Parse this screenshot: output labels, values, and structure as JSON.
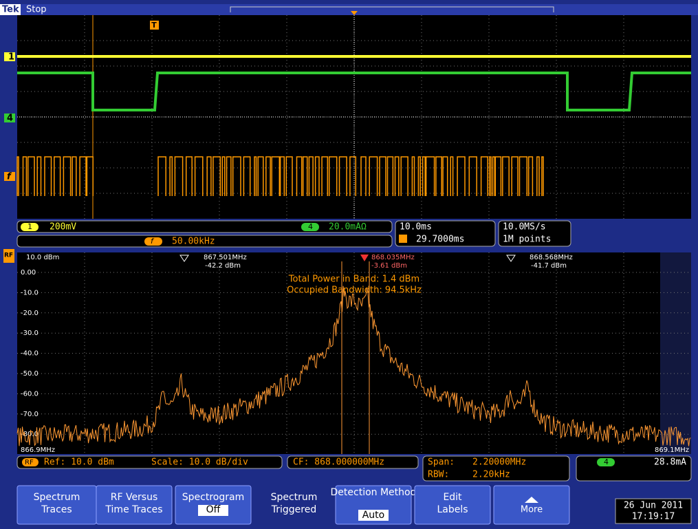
{
  "header": {
    "brand": "Tek",
    "state": "Stop"
  },
  "channel_markers": {
    "ch1": "1",
    "ch4": "4",
    "math": "f",
    "trigger": "T"
  },
  "readouts": {
    "ch1_badge": "1",
    "ch1_scale": "200mV",
    "ch4_badge": "4",
    "ch4_scale": "20.0mAΩ",
    "math_badge": "f",
    "math_scale": "50.00kHz",
    "timebase": "10.0ms",
    "trigger_position": "29.7000ms",
    "sample_rate": "10.0MS/s",
    "record_length": "1M points"
  },
  "spectrum": {
    "badge": "RF",
    "ref_level": "10.0 dBm",
    "y_labels": [
      "0.00",
      "-10.0",
      "-20.0",
      "-30.0",
      "-40.0",
      "-50.0",
      "-60.0",
      "-70.0",
      "-80.0"
    ],
    "start_freq": "866.9MHz",
    "stop_freq": "869.1MHz",
    "markers": [
      {
        "freq": "867.501MHz",
        "level": "-42.2 dBm"
      },
      {
        "freq": "868.035MHz",
        "level": "-3.61 dBm"
      },
      {
        "freq": "868.568MHz",
        "level": "-41.7 dBm"
      }
    ],
    "annotations": [
      "Total Power in Band: 1.4 dBm",
      "Occupied Bandwidth: 94.5kHz"
    ]
  },
  "rf_readouts": {
    "badge": "RF",
    "ref": "Ref: 10.0 dBm",
    "scale": "Scale: 10.0 dB/div",
    "cf": "CF: 868.000000MHz",
    "span_label": "Span:",
    "span": "2.20000MHz",
    "rbw_label": "RBW:",
    "rbw": "2.20kHz",
    "trigger_badge": "4",
    "trigger_level": "28.8mA"
  },
  "menu": [
    {
      "line1": "Spectrum",
      "line2": "Traces"
    },
    {
      "line1": "RF Versus",
      "line2": "Time Traces"
    },
    {
      "line1": "Spectrogram",
      "line2": "Off"
    },
    {
      "line1": "Spectrum",
      "line2": "Triggered"
    },
    {
      "line1": "Detection Method",
      "line2": "Auto"
    },
    {
      "line1": "Edit",
      "line2": "Labels"
    },
    {
      "line1": "More"
    }
  ],
  "datetime": {
    "date": "26 Jun 2011",
    "time": "17:19:17"
  }
}
